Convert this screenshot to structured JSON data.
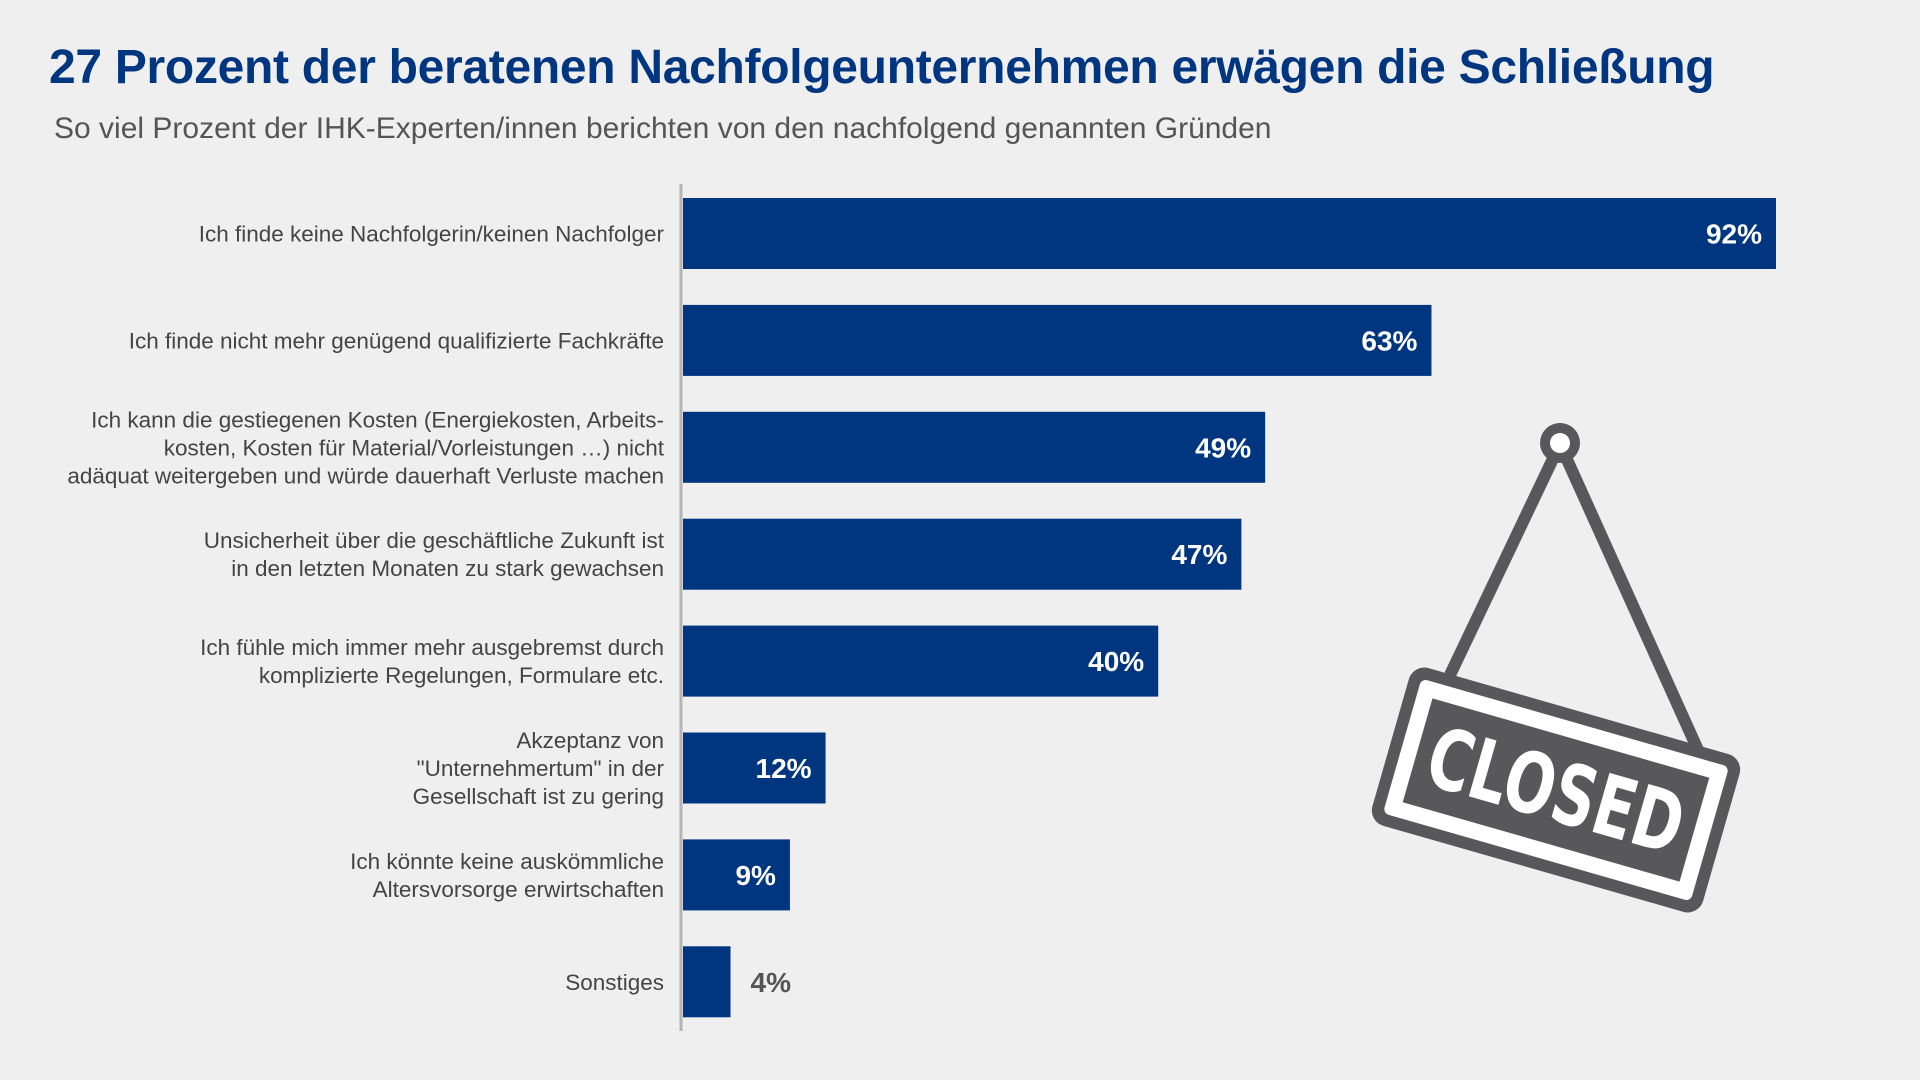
{
  "title": "27 Prozent der beratenen Nachfolgeunternehmen erwägen die Schließung",
  "subtitle": "So viel Prozent der IHK-Experten/innen berichten von den nachfolgend genannten Gründen",
  "colors": {
    "bar": "#003580",
    "title": "#003580",
    "label": "#444444",
    "background": "#efefef",
    "sign": "#58585a"
  },
  "sign": {
    "text": "CLOSED",
    "icon": "hanging-closed-sign"
  },
  "chart_data": {
    "type": "bar",
    "orientation": "horizontal",
    "unit": "%",
    "xlim": [
      0,
      100
    ],
    "grid": false,
    "categories": [
      [
        "Ich finde keine Nachfolgerin/keinen Nachfolger"
      ],
      [
        "Ich finde nicht mehr genügend qualifizierte Fachkräfte"
      ],
      [
        "Ich kann die gestiegenen Kosten (Energiekosten, Arbeits-",
        "kosten, Kosten für Material/Vorleistungen …) nicht",
        "adäquat weitergeben und würde dauerhaft Verluste machen"
      ],
      [
        "Unsicherheit über die geschäftliche Zukunft ist",
        "in den letzten Monaten zu stark gewachsen"
      ],
      [
        "Ich fühle mich immer mehr ausgebremst durch",
        "komplizierte Regelungen, Formulare etc."
      ],
      [
        "Akzeptanz von",
        "\"Unternehmertum\" in der",
        "Gesellschaft ist zu gering"
      ],
      [
        "Ich könnte keine auskömmliche",
        "Altersvorsorge erwirtschaften"
      ],
      [
        "Sonstiges"
      ]
    ],
    "values": [
      92,
      63,
      49,
      47,
      40,
      12,
      9,
      4
    ],
    "data_labels": [
      "92%",
      "63%",
      "49%",
      "47%",
      "40%",
      "12%",
      "9%",
      "4%"
    ]
  }
}
